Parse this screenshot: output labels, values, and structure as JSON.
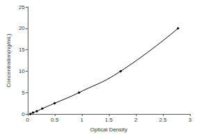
{
  "chart_data": {
    "type": "line",
    "x": [
      0.05,
      0.1,
      0.17,
      0.27,
      0.5,
      0.95,
      1.72,
      2.78
    ],
    "values": [
      0,
      0.31,
      0.63,
      1.25,
      2.5,
      5,
      10,
      20
    ],
    "xlim": [
      0,
      3
    ],
    "xticks": [
      0,
      0.5,
      1,
      1.5,
      2,
      2.5,
      3
    ],
    "ylim": [
      0,
      25
    ],
    "yticks": [
      0,
      5,
      10,
      15,
      20,
      25
    ],
    "x_label": "Optical Density",
    "y_label": "Concentration(ng/mL)",
    "color": "#000000",
    "marker": "diamond",
    "grid": false
  }
}
